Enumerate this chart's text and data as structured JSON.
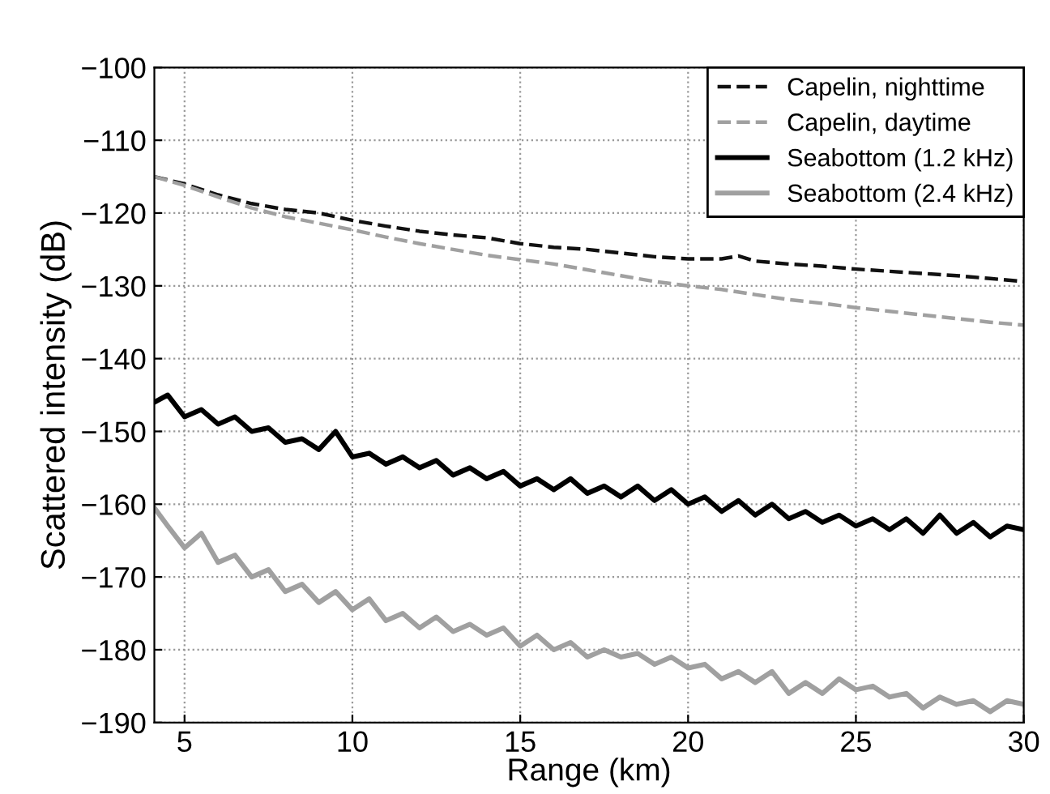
{
  "chart_data": {
    "type": "line",
    "xlabel": "Range (km)",
    "ylabel": "Scattered intensity (dB)",
    "xlim": [
      4.1,
      30
    ],
    "xticks": [
      5,
      10,
      15,
      20,
      25,
      30
    ],
    "ylim": [
      -190,
      -100
    ],
    "yticks": [
      -190,
      -180,
      -170,
      -160,
      -150,
      -140,
      -130,
      -120,
      -110,
      -100
    ],
    "grid": true,
    "legend": "top right",
    "series": [
      {
        "name": "Capelin, nighttime",
        "color": "#111111",
        "line_style": "dashed",
        "x": [
          4.1,
          5,
          6,
          7,
          8,
          9,
          10,
          11,
          12,
          13,
          14,
          15,
          16,
          17,
          18,
          19,
          20,
          21,
          21.5,
          22,
          23,
          24,
          25,
          26,
          27,
          28,
          29,
          30
        ],
        "values": [
          -115,
          -116,
          -117.5,
          -118.7,
          -119.5,
          -120,
          -121,
          -121.8,
          -122.5,
          -123,
          -123.4,
          -124.2,
          -124.7,
          -125,
          -125.5,
          -126,
          -126.3,
          -126.3,
          -125.9,
          -126.6,
          -127,
          -127.3,
          -127.7,
          -128,
          -128.3,
          -128.6,
          -129,
          -129.4
        ]
      },
      {
        "name": "Capelin, daytime",
        "color": "#a0a0a0",
        "line_style": "dashed",
        "x": [
          4.1,
          5,
          6,
          7,
          8,
          9,
          10,
          11,
          12,
          13,
          14,
          15,
          16,
          17,
          18,
          19,
          20,
          21,
          22,
          23,
          24,
          25,
          26,
          27,
          28,
          29,
          30
        ],
        "values": [
          -115,
          -116.2,
          -117.8,
          -119.3,
          -120.5,
          -121.4,
          -122.3,
          -123.3,
          -124.2,
          -125,
          -125.8,
          -126.4,
          -127,
          -127.8,
          -128.6,
          -129.4,
          -130,
          -130.5,
          -131.2,
          -131.9,
          -132.4,
          -133,
          -133.5,
          -134,
          -134.5,
          -135,
          -135.4
        ]
      },
      {
        "name": "Seabottom (1.2 kHz)",
        "color": "#000000",
        "line_style": "solid",
        "x": [
          4.1,
          4.5,
          5,
          5.5,
          6,
          6.5,
          7,
          7.5,
          8,
          8.5,
          9,
          9.5,
          10,
          10.5,
          11,
          11.5,
          12,
          12.5,
          13,
          13.5,
          14,
          14.5,
          15,
          15.5,
          16,
          16.5,
          17,
          17.5,
          18,
          18.5,
          19,
          19.5,
          20,
          20.5,
          21,
          21.5,
          22,
          22.5,
          23,
          23.5,
          24,
          24.5,
          25,
          25.5,
          26,
          26.5,
          27,
          27.5,
          28,
          28.5,
          29,
          29.5,
          30
        ],
        "values": [
          -146,
          -145,
          -148,
          -147,
          -149,
          -148,
          -150,
          -149.5,
          -151.5,
          -151,
          -152.5,
          -150,
          -153.5,
          -153,
          -154.5,
          -153.5,
          -155,
          -154,
          -156,
          -155,
          -156.5,
          -155.5,
          -157.5,
          -156.5,
          -158,
          -156.5,
          -158.5,
          -157.5,
          -159,
          -157.5,
          -159.5,
          -158,
          -160,
          -159,
          -161,
          -159.5,
          -161.5,
          -160,
          -162,
          -161,
          -162.5,
          -161.5,
          -163,
          -162,
          -163.5,
          -162,
          -164,
          -161.5,
          -164,
          -162.5,
          -164.5,
          -163,
          -163.5
        ]
      },
      {
        "name": "Seabottom (2.4 kHz)",
        "color": "#a0a0a0",
        "line_style": "solid",
        "x": [
          4.1,
          4.5,
          5,
          5.5,
          6,
          6.5,
          7,
          7.5,
          8,
          8.5,
          9,
          9.5,
          10,
          10.5,
          11,
          11.5,
          12,
          12.5,
          13,
          13.5,
          14,
          14.5,
          15,
          15.5,
          16,
          16.5,
          17,
          17.5,
          18,
          18.5,
          19,
          19.5,
          20,
          20.5,
          21,
          21.5,
          22,
          22.5,
          23,
          23.5,
          24,
          24.5,
          25,
          25.5,
          26,
          26.5,
          27,
          27.5,
          28,
          28.5,
          29,
          29.5,
          30
        ],
        "values": [
          -160.5,
          -163,
          -166,
          -164,
          -168,
          -167,
          -170,
          -169,
          -172,
          -171,
          -173.5,
          -172,
          -174.5,
          -173,
          -176,
          -175,
          -177,
          -175.5,
          -177.5,
          -176.5,
          -178,
          -177,
          -179.5,
          -178,
          -180,
          -179,
          -181,
          -180,
          -181,
          -180.5,
          -182,
          -181,
          -182.5,
          -182,
          -184,
          -183,
          -184.5,
          -183,
          -186,
          -184.5,
          -186,
          -184,
          -185.5,
          -185,
          -186.5,
          -186,
          -188,
          -186.5,
          -187.5,
          -187,
          -188.5,
          -187,
          -187.5
        ]
      }
    ]
  }
}
